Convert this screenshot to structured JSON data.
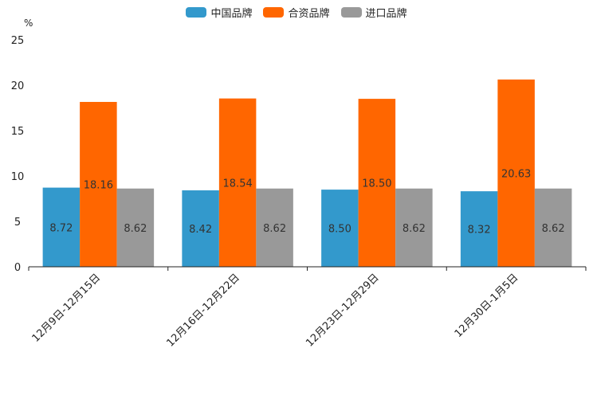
{
  "chart_data": {
    "type": "bar",
    "title": "",
    "unit": "%",
    "categories": [
      "12月9日-12月15日",
      "12月16日-12月22日",
      "12月23日-12月29日",
      "12月30日-1月5日"
    ],
    "series": [
      {
        "name": "中国品牌",
        "color": "#3399cc",
        "values": [
          8.72,
          8.42,
          8.5,
          8.32
        ]
      },
      {
        "name": "合资品牌",
        "color": "#ff6600",
        "values": [
          18.16,
          18.54,
          18.5,
          20.63
        ]
      },
      {
        "name": "进口品牌",
        "color": "#999999",
        "values": [
          8.62,
          8.62,
          8.62,
          8.62
        ]
      }
    ],
    "ylim": [
      0,
      25
    ],
    "yticks": [
      "0",
      "5",
      "10",
      "15",
      "20",
      "25"
    ],
    "value_labels": [
      [
        "8.72",
        "8.42",
        "8.50",
        "8.32"
      ],
      [
        "18.16",
        "18.54",
        "18.50",
        "20.63"
      ],
      [
        "8.62",
        "8.62",
        "8.62",
        "8.62"
      ]
    ],
    "legend_position": "top-center",
    "grid": false
  }
}
